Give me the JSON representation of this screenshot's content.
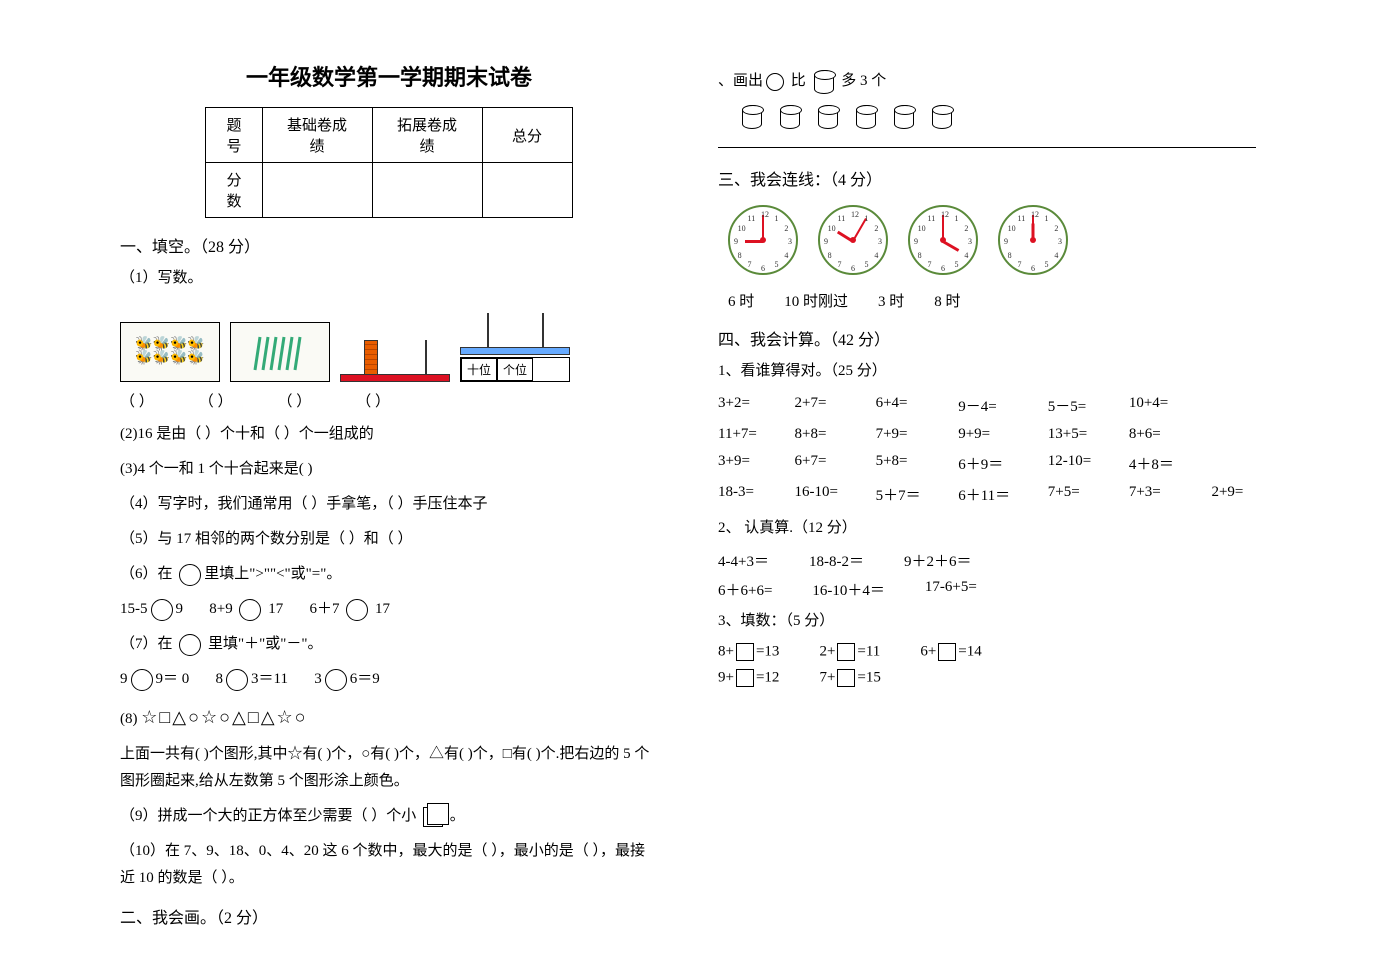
{
  "title": "一年级数学第一学期期末试卷",
  "score_table": {
    "headers": [
      "题号",
      "基础卷成绩",
      "拓展卷成绩",
      "总分"
    ],
    "row_label": "分数"
  },
  "sec1": {
    "head": "一、填空。（28 分）",
    "q1_label": "（1）写数。",
    "abacus_labels": {
      "tens": "十位",
      "ones": "个位"
    },
    "parens": [
      "（     ）",
      "（     ）",
      "（     ）",
      "（     ）"
    ],
    "q2": "(2)16 是由（    ）个十和（    ）个一组成的",
    "q3": "(3)4 个一和 1 个十合起来是(     )",
    "q4": "（4）写字时，我们通常用（    ）手拿笔，（    ）手压住本子",
    "q5": "（5）与 17 相邻的两个数分别是（    ）和（     ）",
    "q6_pre": "（6）在 ",
    "q6_post": "里填上\">\"\"<\"或\"=\"。",
    "q6_a": "15-5",
    "q6_av": "9",
    "q6_b": "8+9",
    "q6_bv": "17",
    "q6_c": "6＋7",
    "q6_cv": "17",
    "q7_pre": "（7）在 ",
    "q7_post": " 里填\"＋\"或\"－\"。",
    "q7_a": "9",
    "q7_av": "9＝ 0",
    "q7_b": "8",
    "q7_bv": "3＝11",
    "q7_c": "3",
    "q7_cv": "6＝9",
    "q8_label": "(8) ",
    "q8_symbols": "☆□△○☆○△□△☆○",
    "q8_text": "上面一共有(  )个图形,其中☆有(  )个，○有(  )个，△有(  )个，□有(  )个.把右边的 5 个图形圈起来,给从左数第 5 个图形涂上颜色。",
    "q9_pre": "（9）拼成一个大的正方体至少需要（  ）个小 ",
    "q9_post": " 。",
    "q10": "（10）在 7、9、18、0、4、20 这 6 个数中，最大的是（   ），最小的是（   ），最接近 10 的数是（   ）。"
  },
  "sec2": {
    "head": "二、我会画。（2 分）",
    "instruction_pre": "、画出",
    "instruction_mid": " 比 ",
    "instruction_post": " 多  3 个"
  },
  "sec3": {
    "head": "三、我会连线：（4 分）",
    "times": [
      "6 时",
      "10 时刚过",
      "3 时",
      "8 时"
    ],
    "clock_hours": [
      9,
      10,
      4,
      12
    ],
    "clock_mins": [
      0,
      5,
      0,
      0
    ]
  },
  "sec4": {
    "head": "四、我会计算。（42 分）",
    "p1_head": "1、看谁算得对。（25 分）",
    "grid": [
      [
        "3+2=",
        "2+7=",
        "6+4=",
        "9－4=",
        "5－5=",
        "10+4=",
        ""
      ],
      [
        "11+7=",
        "8+8=",
        "7+9=",
        "9+9=",
        "13+5=",
        "8+6=",
        ""
      ],
      [
        "3+9=",
        "6+7=",
        "5+8=",
        "6＋9＝",
        "12-10=",
        "4＋8＝",
        ""
      ],
      [
        "18-3=",
        "16-10=",
        "5＋7＝",
        "6＋11＝",
        "7+5=",
        "7+3=",
        "2+9="
      ]
    ],
    "p2_head": "2、 认真算.（12 分）",
    "p2_r1": [
      "4-4+3＝",
      "18-8-2＝",
      "9＋2＋6＝"
    ],
    "p2_r2": [
      "6＋6+6=",
      "16-10＋4＝",
      "17-6+5="
    ],
    "p3_head": "3、填数：（5 分）",
    "p3": {
      "a": "8+",
      "av": "=13",
      "b": "2+",
      "bv": "=11",
      "c": "6+",
      "cv": "=14",
      "d": "9+",
      "dv": "=12",
      "e": "7+",
      "ev": "=15"
    }
  }
}
